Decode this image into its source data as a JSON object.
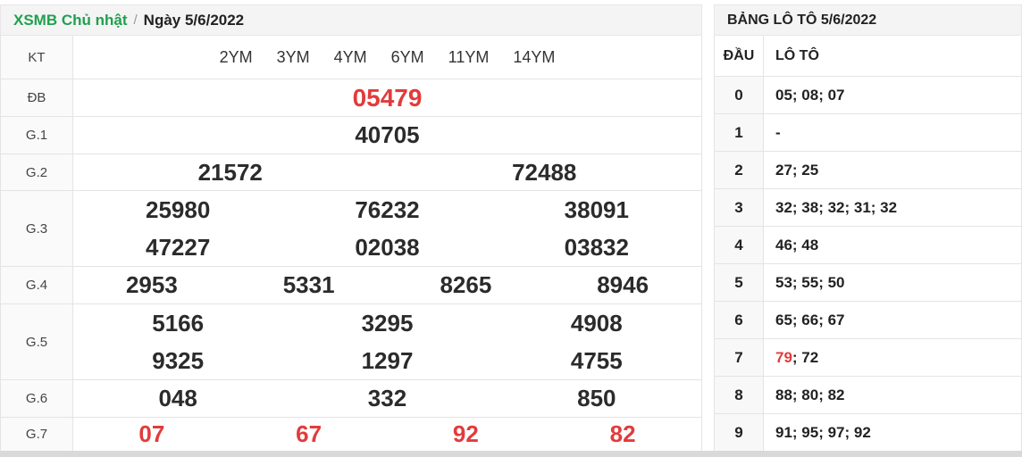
{
  "theme": {
    "green": "#21a04f",
    "red": "#e23b3b",
    "header_bg": "#f4f4f4",
    "border": "#e4e4e4",
    "text": "#2b2b2b"
  },
  "left": {
    "breadcrumb": {
      "title": "XSMB Chủ nhật",
      "sep": "/",
      "date": "Ngày 5/6/2022"
    },
    "header": {
      "kt": "KT",
      "links": [
        "2YM",
        "3YM",
        "4YM",
        "6YM",
        "11YM",
        "14YM"
      ]
    },
    "rows": [
      {
        "label": "ĐB",
        "nums": [
          [
            "05479"
          ]
        ]
      },
      {
        "label": "G.1",
        "nums": [
          [
            "40705"
          ]
        ]
      },
      {
        "label": "G.2",
        "nums": [
          [
            "21572",
            "72488"
          ]
        ]
      },
      {
        "label": "G.3",
        "nums": [
          [
            "25980",
            "76232",
            "38091"
          ],
          [
            "47227",
            "02038",
            "03832"
          ]
        ]
      },
      {
        "label": "G.4",
        "nums": [
          [
            "2953",
            "5331",
            "8265",
            "8946"
          ]
        ]
      },
      {
        "label": "G.5",
        "nums": [
          [
            "5166",
            "3295",
            "4908"
          ],
          [
            "9325",
            "1297",
            "4755"
          ]
        ]
      },
      {
        "label": "G.6",
        "nums": [
          [
            "048",
            "332",
            "850"
          ]
        ]
      },
      {
        "label": "G.7",
        "nums": [
          [
            "07",
            "67",
            "92",
            "82"
          ]
        ]
      }
    ]
  },
  "right": {
    "title": "BẢNG LÔ TÔ 5/6/2022",
    "columns": [
      "ĐẦU",
      "LÔ TÔ"
    ],
    "rows": [
      {
        "dau": "0",
        "loto": "05; 08; 07"
      },
      {
        "dau": "1",
        "loto": "-"
      },
      {
        "dau": "2",
        "loto": "27; 25"
      },
      {
        "dau": "3",
        "loto": "32; 38; 32; 31; 32"
      },
      {
        "dau": "4",
        "loto": "46; 48"
      },
      {
        "dau": "5",
        "loto": "53; 55; 50"
      },
      {
        "dau": "6",
        "loto": "65; 66; 67"
      },
      {
        "dau": "7",
        "loto_red": "79",
        "loto_rest": "; 72"
      },
      {
        "dau": "8",
        "loto": "88; 80; 82"
      },
      {
        "dau": "9",
        "loto": "91; 95; 97; 92"
      }
    ]
  }
}
